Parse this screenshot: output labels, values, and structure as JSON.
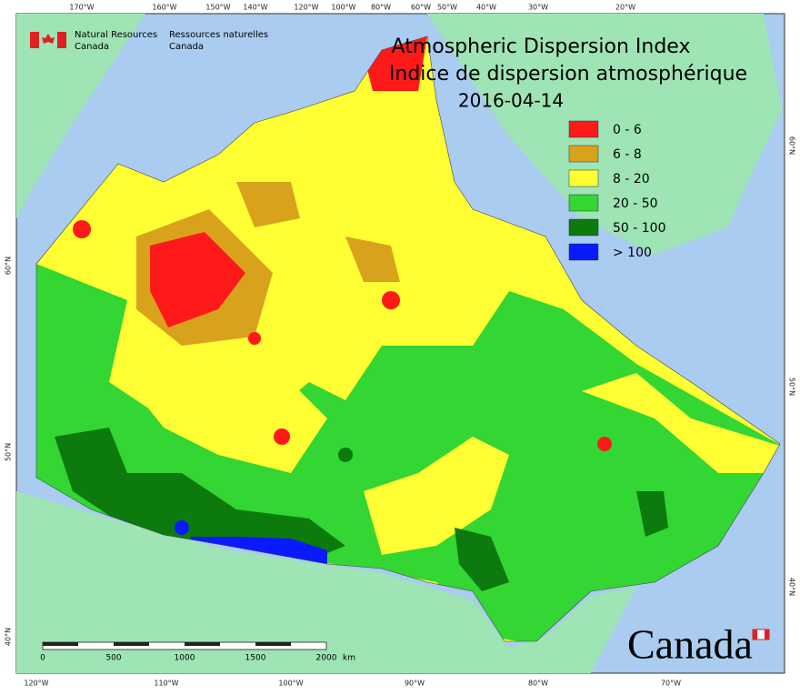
{
  "header": {
    "org_en": [
      "Natural Resources",
      "Canada"
    ],
    "org_fr": [
      "Ressources naturelles",
      "Canada"
    ]
  },
  "title": {
    "en": "Atmospheric Dispersion Index",
    "fr": "Indice de dispersion atmosphérique",
    "date": "2016-04-14"
  },
  "legend": [
    {
      "label": "0 - 6",
      "color": "#ff1a1a"
    },
    {
      "label": "6 - 8",
      "color": "#d9a21c"
    },
    {
      "label": "8 - 20",
      "color": "#ffff33"
    },
    {
      "label": "20 - 50",
      "color": "#33d633"
    },
    {
      "label": "50 - 100",
      "color": "#0d7a0d"
    },
    {
      "label": "> 100",
      "color": "#0a1aff"
    }
  ],
  "graticule": {
    "top": [
      "170°W",
      "160°W",
      "150°W",
      "140°W",
      "120°W",
      "100°W",
      "80°W",
      "60°W",
      "50°W",
      "40°W",
      "30°W",
      "20°W"
    ],
    "bottom": [
      "120°W",
      "110°W",
      "100°W",
      "90°W",
      "80°W",
      "70°W"
    ],
    "left": [
      "60°N",
      "50°N",
      "40°N"
    ],
    "right": [
      "60°N",
      "50°N",
      "40°N"
    ]
  },
  "scale_bar": {
    "ticks": [
      "0",
      "500",
      "1000",
      "1500",
      "2000"
    ],
    "unit": "km"
  },
  "wordmark": "Canada"
}
